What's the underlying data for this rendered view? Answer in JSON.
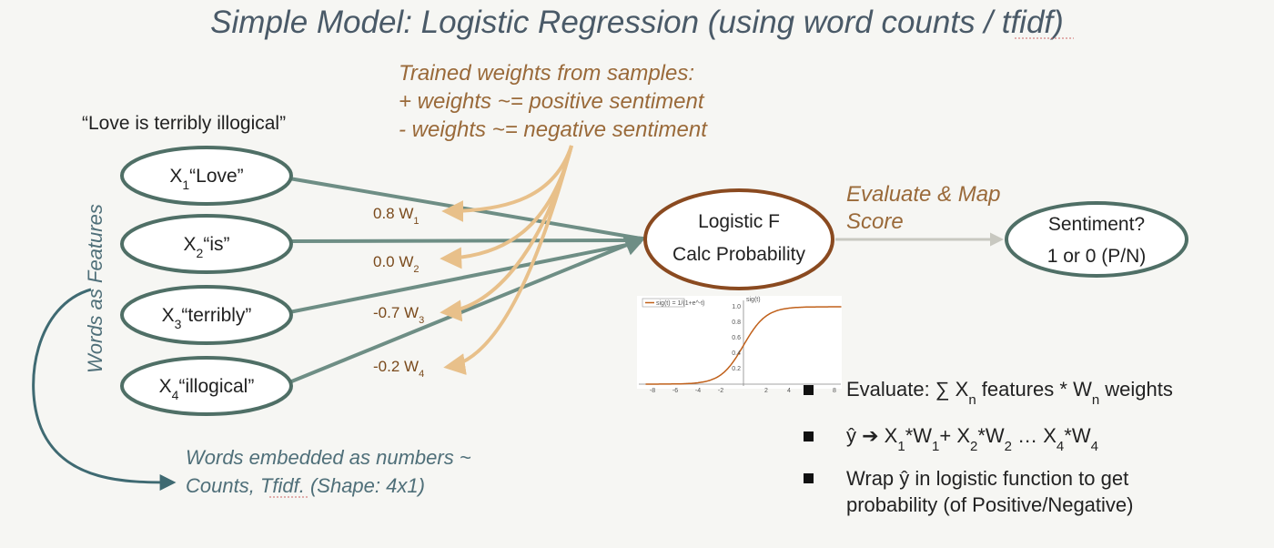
{
  "title": "Simple Model: Logistic Regression (using word counts / tfidf)",
  "trained_weights": {
    "line1": "Trained weights from samples:",
    "line2": "+ weights ~= positive sentiment",
    "line3": "- weights ~= negative sentiment"
  },
  "sentence": "“Love is terribly illogical”",
  "side_label": "Words as Features",
  "features": [
    {
      "var": "X",
      "sub": "1",
      "word": "“Love”"
    },
    {
      "var": "X",
      "sub": "2",
      "word": "“is”"
    },
    {
      "var": "X",
      "sub": "3",
      "word": "“terribly”"
    },
    {
      "var": "X",
      "sub": "4",
      "word": "“illogical”"
    }
  ],
  "weights": [
    {
      "value": "0.8 W",
      "sub": "1"
    },
    {
      "value": "0.0 W",
      "sub": "2"
    },
    {
      "value": "-0.7 W",
      "sub": "3"
    },
    {
      "value": "-0.2 W",
      "sub": "4"
    }
  ],
  "logistic": {
    "title": "Logistic F",
    "subtitle": "Calc Probability"
  },
  "evaluate": {
    "line1": "Evaluate & Map",
    "line2": "Score"
  },
  "sentiment": {
    "title": "Sentiment?",
    "subtitle": "1 or 0 (P/N)"
  },
  "embedded": {
    "line1": "Words embedded as numbers ~",
    "line2a": "Counts, ",
    "line2b": "Tfidf",
    "line2c": ".  (Shape: 4x1)"
  },
  "sigmoid_plot": {
    "legend": "sig(t) = 1/(1+e^-t)",
    "y_label": "sig(t)",
    "x_ticks": [
      "-8",
      "-6",
      "-4",
      "-2",
      "2",
      "4",
      "6",
      "8"
    ],
    "y_ticks": [
      "1.0",
      "0.8",
      "0.6",
      "0.4",
      "0.2"
    ]
  },
  "bullets": {
    "b1": {
      "a": "Evaluate: ∑ ",
      "b": "X",
      "sub1": "n",
      "c": " features * ",
      "d": "W",
      "sub2": "n",
      "e": " weights"
    },
    "b2": {
      "a": "ŷ ➔ X",
      "s1": "1",
      "b": "*W",
      "s2": "1",
      "c": "+ X",
      "s3": "2",
      "d": "*W",
      "s4": "2",
      "e": " … X",
      "s5": "4",
      "f": "*W",
      "s6": "4"
    },
    "b3": {
      "line1": "Wrap ŷ in logistic function to get",
      "line2": "probability (of Positive/Negative)"
    }
  },
  "colors": {
    "teal": "#6e8e85",
    "node_border": "#4f6f66",
    "orange_arrow": "#e8c08a",
    "logistic_border": "#8a4a20",
    "sigmoid": "#c0601a"
  }
}
